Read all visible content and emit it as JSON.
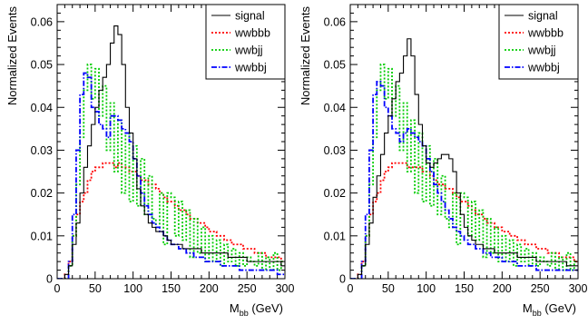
{
  "chart_data": [
    {
      "type": "line",
      "style": "step-histogram",
      "xlabel": "M",
      "xlabel_sub": "bb",
      "xlabel_unit": "(GeV)",
      "ylabel": "Normalized Events",
      "xlim": [
        0,
        300
      ],
      "ylim": [
        0,
        0.064
      ],
      "xticks": [
        0,
        50,
        100,
        150,
        200,
        250,
        300
      ],
      "xtick_labels": [
        "0",
        "50",
        "100",
        "150",
        "200",
        "250",
        "300"
      ],
      "yticks": [
        0,
        0.01,
        0.02,
        0.03,
        0.04,
        0.05,
        0.06
      ],
      "ytick_labels": [
        "0",
        "0.01",
        "0.02",
        "0.03",
        "0.04",
        "0.05",
        "0.06"
      ],
      "bin_width": 5,
      "legend_position": "top-right",
      "series": [
        {
          "name": "signal",
          "color": "#000000",
          "dash": "solid",
          "values": [
            0,
            0,
            0.001,
            0.003,
            0.008,
            0.013,
            0.02,
            0.026,
            0.031,
            0.036,
            0.04,
            0.044,
            0.047,
            0.05,
            0.055,
            0.059,
            0.057,
            0.05,
            0.04,
            0.034,
            0.028,
            0.021,
            0.017,
            0.015,
            0.013,
            0.012,
            0.011,
            0.011,
            0.01,
            0.009,
            0.008,
            0.008,
            0.008,
            0.007,
            0.007,
            0.007,
            0.007,
            0.007,
            0.006,
            0.006,
            0.006,
            0.006,
            0.006,
            0.006,
            0.006,
            0.005,
            0.005,
            0.005,
            0.005,
            0.005,
            0.004,
            0.004,
            0.004,
            0.004,
            0.004,
            0.004,
            0.004,
            0.004,
            0.004,
            0.003
          ]
        },
        {
          "name": "wwbbb",
          "color": "#ff0000",
          "dash": "dotted",
          "values": [
            0,
            0,
            0.001,
            0.004,
            0.01,
            0.015,
            0.018,
            0.02,
            0.023,
            0.025,
            0.026,
            0.026,
            0.027,
            0.027,
            0.027,
            0.026,
            0.027,
            0.026,
            0.026,
            0.025,
            0.025,
            0.024,
            0.023,
            0.023,
            0.022,
            0.022,
            0.021,
            0.02,
            0.019,
            0.018,
            0.018,
            0.017,
            0.016,
            0.016,
            0.015,
            0.014,
            0.014,
            0.013,
            0.013,
            0.012,
            0.011,
            0.011,
            0.01,
            0.01,
            0.009,
            0.009,
            0.008,
            0.008,
            0.008,
            0.007,
            0.007,
            0.007,
            0.006,
            0.006,
            0.006,
            0.005,
            0.005,
            0.005,
            0.005,
            0.004
          ]
        },
        {
          "name": "wwbjj",
          "color": "#00cc00",
          "dash": "dotted",
          "values": [
            0,
            0,
            0,
            0.003,
            0.01,
            0.022,
            0.033,
            0.044,
            0.05,
            0.042,
            0.049,
            0.038,
            0.045,
            0.03,
            0.041,
            0.025,
            0.037,
            0.02,
            0.034,
            0.018,
            0.031,
            0.017,
            0.028,
            0.015,
            0.024,
            0.014,
            0.012,
            0.02,
            0.008,
            0.02,
            0.019,
            0.01,
            0.018,
            0.009,
            0.016,
            0.005,
            0.014,
            0.006,
            0.012,
            0.004,
            0.01,
            0.004,
            0.009,
            0.003,
            0.008,
            0.004,
            0.007,
            0.003,
            0.006,
            0.003,
            0.005,
            0.004,
            0.003,
            0.006,
            0.002,
            0.005,
            0.002,
            0.006,
            0.002,
            0.004
          ]
        },
        {
          "name": "wwbbj",
          "color": "#0000ff",
          "dash": "dashdot",
          "values": [
            0,
            0,
            0,
            0.004,
            0.015,
            0.03,
            0.043,
            0.048,
            0.047,
            0.04,
            0.039,
            0.036,
            0.035,
            0.033,
            0.038,
            0.038,
            0.037,
            0.035,
            0.034,
            0.032,
            0.028,
            0.024,
            0.02,
            0.017,
            0.015,
            0.013,
            0.012,
            0.011,
            0.01,
            0.009,
            0.008,
            0.008,
            0.007,
            0.007,
            0.006,
            0.006,
            0.005,
            0.005,
            0.005,
            0.004,
            0.004,
            0.004,
            0.004,
            0.003,
            0.003,
            0.003,
            0.003,
            0.003,
            0.002,
            0.002,
            0.002,
            0.002,
            0.002,
            0.002,
            0.002,
            0.002,
            0.002,
            0.002,
            0.001,
            0.001
          ]
        }
      ]
    },
    {
      "type": "line",
      "style": "step-histogram",
      "xlabel": "M",
      "xlabel_sub": "bb",
      "xlabel_unit": "(GeV)",
      "ylabel": "Normalized Events",
      "xlim": [
        0,
        300
      ],
      "ylim": [
        0,
        0.064
      ],
      "xticks": [
        0,
        50,
        100,
        150,
        200,
        250,
        300
      ],
      "xtick_labels": [
        "0",
        "50",
        "100",
        "150",
        "200",
        "250",
        "300"
      ],
      "yticks": [
        0,
        0.01,
        0.02,
        0.03,
        0.04,
        0.05,
        0.06
      ],
      "ytick_labels": [
        "0",
        "0.01",
        "0.02",
        "0.03",
        "0.04",
        "0.05",
        "0.06"
      ],
      "bin_width": 5,
      "legend_position": "top-right",
      "series": [
        {
          "name": "signal",
          "color": "#000000",
          "dash": "solid",
          "values": [
            0,
            0,
            0.001,
            0.003,
            0.008,
            0.013,
            0.019,
            0.024,
            0.029,
            0.034,
            0.038,
            0.042,
            0.046,
            0.048,
            0.052,
            0.056,
            0.052,
            0.043,
            0.036,
            0.031,
            0.027,
            0.026,
            0.027,
            0.028,
            0.029,
            0.029,
            0.028,
            0.025,
            0.02,
            0.015,
            0.012,
            0.01,
            0.009,
            0.008,
            0.008,
            0.007,
            0.007,
            0.007,
            0.006,
            0.006,
            0.006,
            0.006,
            0.006,
            0.006,
            0.005,
            0.005,
            0.005,
            0.005,
            0.005,
            0.004,
            0.004,
            0.004,
            0.004,
            0.004,
            0.004,
            0.004,
            0.004,
            0.003,
            0.003,
            0.003
          ]
        },
        {
          "name": "wwbbb",
          "color": "#ff0000",
          "dash": "dotted",
          "values": [
            0,
            0,
            0.001,
            0.004,
            0.01,
            0.015,
            0.018,
            0.02,
            0.023,
            0.025,
            0.026,
            0.027,
            0.027,
            0.027,
            0.027,
            0.026,
            0.026,
            0.026,
            0.026,
            0.025,
            0.025,
            0.024,
            0.023,
            0.022,
            0.022,
            0.021,
            0.021,
            0.02,
            0.019,
            0.018,
            0.018,
            0.017,
            0.016,
            0.015,
            0.015,
            0.014,
            0.013,
            0.013,
            0.012,
            0.012,
            0.011,
            0.011,
            0.01,
            0.01,
            0.009,
            0.009,
            0.008,
            0.008,
            0.008,
            0.007,
            0.007,
            0.007,
            0.006,
            0.006,
            0.006,
            0.005,
            0.005,
            0.005,
            0.005,
            0.004
          ]
        },
        {
          "name": "wwbjj",
          "color": "#00cc00",
          "dash": "dotted",
          "values": [
            0,
            0,
            0,
            0.003,
            0.01,
            0.022,
            0.033,
            0.044,
            0.05,
            0.042,
            0.049,
            0.038,
            0.045,
            0.03,
            0.041,
            0.025,
            0.037,
            0.02,
            0.034,
            0.018,
            0.031,
            0.017,
            0.028,
            0.015,
            0.024,
            0.014,
            0.012,
            0.02,
            0.008,
            0.02,
            0.019,
            0.01,
            0.018,
            0.009,
            0.016,
            0.005,
            0.014,
            0.006,
            0.012,
            0.004,
            0.01,
            0.004,
            0.009,
            0.003,
            0.008,
            0.004,
            0.007,
            0.003,
            0.006,
            0.003,
            0.005,
            0.004,
            0.003,
            0.006,
            0.002,
            0.005,
            0.002,
            0.006,
            0.002,
            0.004
          ]
        },
        {
          "name": "wwbbj",
          "color": "#0000ff",
          "dash": "dashdot",
          "values": [
            0,
            0,
            0,
            0.004,
            0.015,
            0.03,
            0.043,
            0.046,
            0.045,
            0.04,
            0.038,
            0.035,
            0.034,
            0.032,
            0.034,
            0.035,
            0.034,
            0.033,
            0.032,
            0.031,
            0.028,
            0.025,
            0.022,
            0.02,
            0.018,
            0.016,
            0.014,
            0.012,
            0.011,
            0.01,
            0.009,
            0.008,
            0.008,
            0.007,
            0.007,
            0.006,
            0.006,
            0.005,
            0.005,
            0.005,
            0.004,
            0.004,
            0.004,
            0.004,
            0.003,
            0.003,
            0.003,
            0.003,
            0.003,
            0.002,
            0.002,
            0.002,
            0.002,
            0.002,
            0.002,
            0.002,
            0.002,
            0.002,
            0.002,
            0.002
          ]
        }
      ]
    }
  ]
}
